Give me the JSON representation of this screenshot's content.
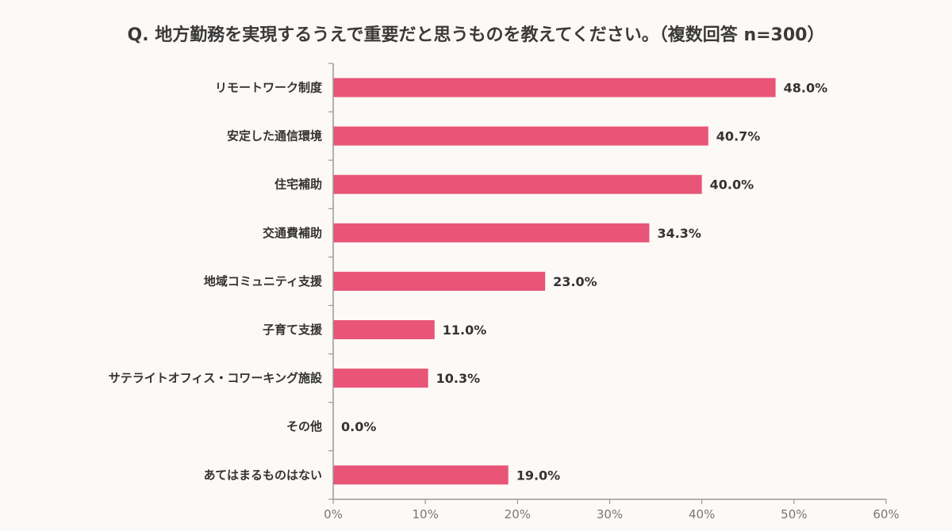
{
  "chart_data": {
    "type": "bar",
    "orientation": "horizontal",
    "title": "Q. 地方勤務を実現するうえで重要だと思うものを教えてください。（複数回答 n=300）",
    "categories": [
      "リモートワーク制度",
      "安定した通信環境",
      "住宅補助",
      "交通費補助",
      "地域コミュニティ支援",
      "子育て支援",
      "サテライトオフィス・コワーキング施設",
      "その他",
      "あてはまるものはない"
    ],
    "values": [
      48.0,
      40.7,
      40.0,
      34.3,
      23.0,
      11.0,
      10.3,
      0.0,
      19.0
    ],
    "value_labels": [
      "48.0%",
      "40.7%",
      "40.0%",
      "34.3%",
      "23.0%",
      "11.0%",
      "10.3%",
      "0.0%",
      "19.0%"
    ],
    "x_ticks": [
      0,
      10,
      20,
      30,
      40,
      50,
      60
    ],
    "x_tick_labels": [
      "0%",
      "10%",
      "20%",
      "30%",
      "40%",
      "50%",
      "60%"
    ],
    "xlim": [
      0,
      60
    ],
    "grid": false,
    "legend": "none",
    "bar_color": "#e85577",
    "axis_color": "#999999"
  }
}
